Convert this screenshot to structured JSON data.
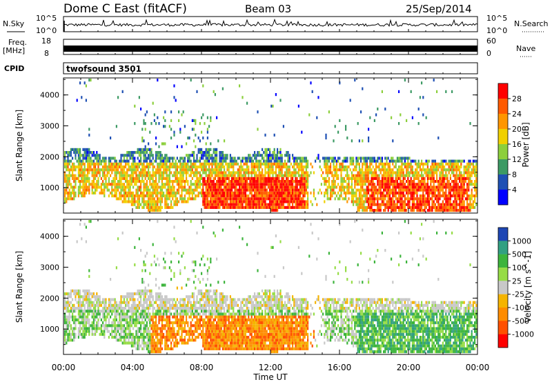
{
  "header": {
    "title": "Dome C East (fitACF)",
    "beam": "Beam 03",
    "date": "25/Sep/2014"
  },
  "strips": {
    "nsky_label": "N.Sky",
    "nsky_ticks": [
      "10^5",
      "10^0"
    ],
    "nsearch_label": "N.Search",
    "nsearch_ticks": [
      "10^5",
      "10^0"
    ],
    "freq_label": "Freq.",
    "freq_unit": "[MHz]",
    "freq_ticks": [
      "18",
      "8"
    ],
    "nave_label": "Nave",
    "nave_ticks": [
      "60",
      "0"
    ],
    "cpid_label": "CPID",
    "cpid_value": "twofsound 3501"
  },
  "chart_data": [
    {
      "type": "heatmap",
      "name": "power-panel",
      "ylabel": "Slant Range [km]",
      "yticks": [
        1000,
        2000,
        3000,
        4000
      ],
      "ylim": [
        180,
        4550
      ],
      "xlim": [
        0,
        24
      ],
      "colorbar": {
        "label": "Power [dB]",
        "ticks": [
          "28",
          "24",
          "20",
          "16",
          "12",
          "8",
          "4"
        ],
        "colors": [
          "#ff0000",
          "#ff5a00",
          "#ff9600",
          "#f0d000",
          "#8ccf3c",
          "#3c9a64",
          "#1e50b4",
          "#0000ff"
        ]
      }
    },
    {
      "type": "heatmap",
      "name": "velocity-panel",
      "ylabel": "Slant Range [km]",
      "yticks": [
        1000,
        2000,
        3000,
        4000
      ],
      "ylim": [
        180,
        4550
      ],
      "xlim": [
        0,
        24
      ],
      "colorbar": {
        "label": "Velocity [m s^-1]",
        "ticks": [
          "1000",
          "500",
          "100",
          "25",
          "-25",
          "-100",
          "-500",
          "-1000"
        ],
        "colors": [
          "#1e46b4",
          "#32a082",
          "#3cb43c",
          "#96dc46",
          "#c8c8c8",
          "#f5b400",
          "#ff8c00",
          "#ff5000",
          "#ff0000"
        ]
      }
    }
  ],
  "xaxis": {
    "label": "Time UT",
    "ticks": [
      "00:00",
      "04:00",
      "08:00",
      "12:00",
      "16:00",
      "20:00",
      "00:00"
    ]
  },
  "colors": {
    "power": [
      "#0000ff",
      "#1e50b4",
      "#3c9a64",
      "#8ccf3c",
      "#f0d000",
      "#ff9600",
      "#ff5a00",
      "#ff0000"
    ],
    "velocity": [
      "#ff0000",
      "#ff5000",
      "#ff8c00",
      "#f5b400",
      "#c8c8c8",
      "#96dc46",
      "#3cb43c",
      "#32a082",
      "#1e46b4"
    ]
  }
}
